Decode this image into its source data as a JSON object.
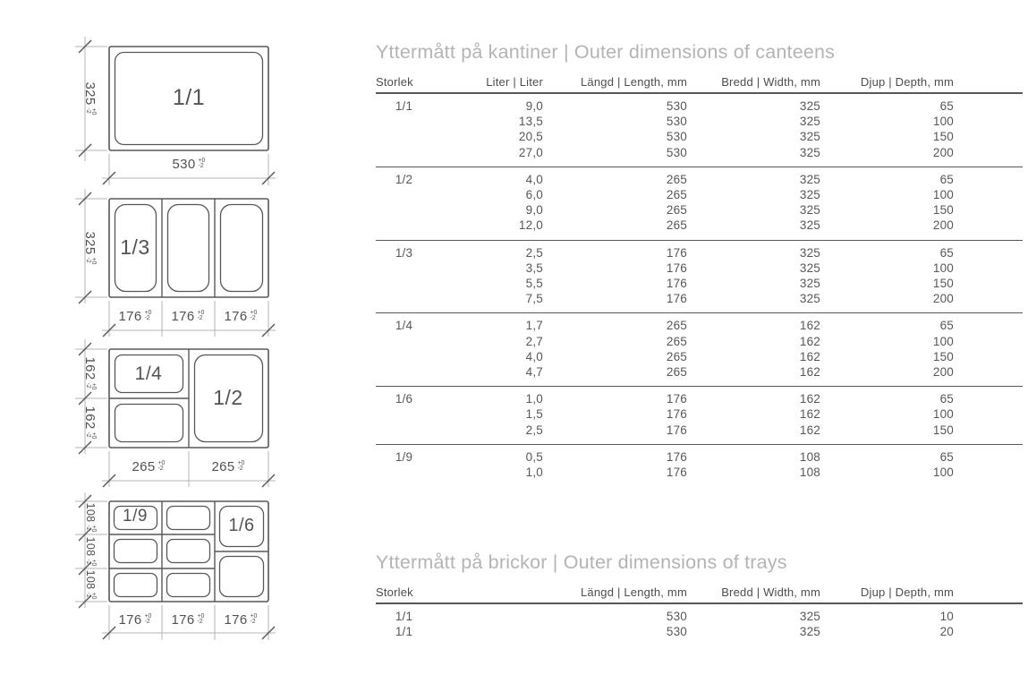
{
  "meta": {
    "tolerance_plus": "+0",
    "tolerance_minus": "-2"
  },
  "colors": {
    "text": "#55585c",
    "title_gray": "#b2b4b6",
    "drawing_line": "#55585b",
    "dimension_line": "#b4b4b4"
  },
  "diagrams": [
    {
      "name": "canteen-1-1",
      "labels": [
        "1/1"
      ],
      "side_dims": [
        "325"
      ],
      "bottom_dims": [
        "530"
      ]
    },
    {
      "name": "canteen-1-3",
      "labels": [
        "1/3"
      ],
      "side_dims": [
        "325"
      ],
      "bottom_dims": [
        "176",
        "176",
        "176"
      ]
    },
    {
      "name": "canteen-1-4-1-2",
      "labels": [
        "1/4",
        "1/2"
      ],
      "side_dims": [
        "162",
        "162"
      ],
      "bottom_dims": [
        "265",
        "265"
      ]
    },
    {
      "name": "canteen-1-9-1-6",
      "labels": [
        "1/9",
        "1/6"
      ],
      "side_dims": [
        "108",
        "108",
        "108"
      ],
      "bottom_dims": [
        "176",
        "176",
        "176"
      ]
    }
  ],
  "canteens_table": {
    "title": "Yttermått på kantiner | Outer dimensions of canteens",
    "headers": [
      "Storlek",
      "Liter | Liter",
      "Längd | Length, mm",
      "Bredd | Width, mm",
      "Djup | Depth, mm"
    ],
    "groups": [
      {
        "size": "1/1",
        "rows": [
          [
            "9,0",
            "530",
            "325",
            "65"
          ],
          [
            "13,5",
            "530",
            "325",
            "100"
          ],
          [
            "20,5",
            "530",
            "325",
            "150"
          ],
          [
            "27,0",
            "530",
            "325",
            "200"
          ]
        ]
      },
      {
        "size": "1/2",
        "rows": [
          [
            "4,0",
            "265",
            "325",
            "65"
          ],
          [
            "6,0",
            "265",
            "325",
            "100"
          ],
          [
            "9,0",
            "265",
            "325",
            "150"
          ],
          [
            "12,0",
            "265",
            "325",
            "200"
          ]
        ]
      },
      {
        "size": "1/3",
        "rows": [
          [
            "2,5",
            "176",
            "325",
            "65"
          ],
          [
            "3,5",
            "176",
            "325",
            "100"
          ],
          [
            "5,5",
            "176",
            "325",
            "150"
          ],
          [
            "7,5",
            "176",
            "325",
            "200"
          ]
        ]
      },
      {
        "size": "1/4",
        "rows": [
          [
            "1,7",
            "265",
            "162",
            "65"
          ],
          [
            "2,7",
            "265",
            "162",
            "100"
          ],
          [
            "4,0",
            "265",
            "162",
            "150"
          ],
          [
            "4,7",
            "265",
            "162",
            "200"
          ]
        ]
      },
      {
        "size": "1/6",
        "rows": [
          [
            "1,0",
            "176",
            "162",
            "65"
          ],
          [
            "1,5",
            "176",
            "162",
            "100"
          ],
          [
            "2,5",
            "176",
            "162",
            "150"
          ]
        ]
      },
      {
        "size": "1/9",
        "rows": [
          [
            "0,5",
            "176",
            "108",
            "65"
          ],
          [
            "1,0",
            "176",
            "108",
            "100"
          ]
        ]
      }
    ]
  },
  "trays_table": {
    "title": "Yttermått på brickor | Outer dimensions of trays",
    "headers": [
      "Storlek",
      "Längd | Length, mm",
      "Bredd | Width, mm",
      "Djup | Depth, mm"
    ],
    "rows": [
      [
        "1/1",
        "530",
        "325",
        "10"
      ],
      [
        "1/1",
        "530",
        "325",
        "20"
      ]
    ]
  }
}
